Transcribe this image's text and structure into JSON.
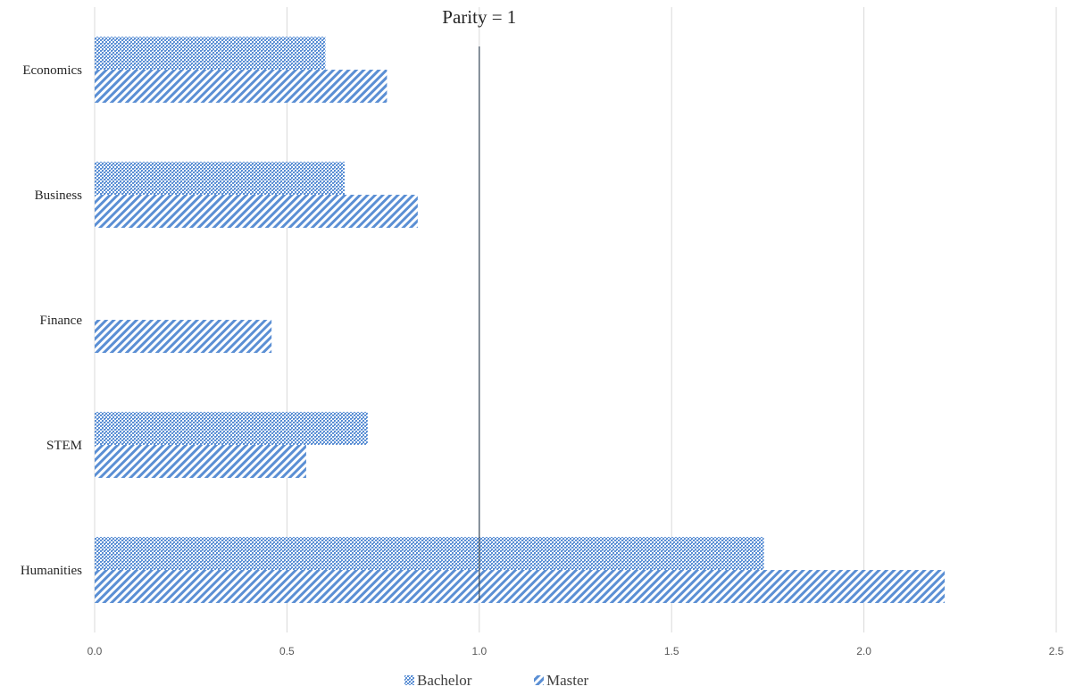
{
  "chart_data": {
    "type": "bar",
    "orientation": "horizontal",
    "title": "",
    "categories": [
      "Economics",
      "Business",
      "Finance",
      "STEM",
      "Humanities"
    ],
    "series": [
      {
        "name": "Bachelor",
        "values": [
          0.6,
          0.65,
          null,
          0.71,
          1.74
        ],
        "pattern": "dots",
        "color": "#5b8fd4"
      },
      {
        "name": "Master",
        "values": [
          0.76,
          0.84,
          0.46,
          0.55,
          2.21
        ],
        "pattern": "diagonal",
        "color": "#5b8fd4"
      }
    ],
    "xlim": [
      0,
      2.5
    ],
    "xticks": [
      "0.0",
      "0.5",
      "1.0",
      "1.5",
      "2.0",
      "2.5"
    ],
    "grid": true,
    "legend": "bottom",
    "reference_line": {
      "value": 1.0,
      "label": "Parity = 1"
    }
  }
}
